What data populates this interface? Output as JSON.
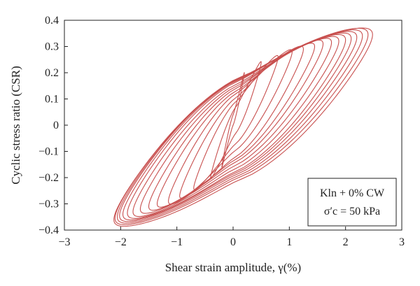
{
  "chart_data": {
    "type": "line",
    "title": "",
    "xlabel": "Shear strain amplitude, γ(%)",
    "ylabel": "Cyclic stress ratio (CSR)",
    "xlim": [
      -3,
      3
    ],
    "ylim": [
      -0.4,
      0.4
    ],
    "x_ticks": [
      "−3",
      "−2",
      "−1",
      "0",
      "1",
      "2",
      "3"
    ],
    "y_ticks": [
      "0.4",
      "0.3",
      "0.2",
      "0.1",
      "0",
      "−0.1",
      "−0.2",
      "−0.3",
      "−0.4"
    ],
    "grid": false,
    "legend_position": "bottom-right",
    "annotation_lines": [
      "Kln + 0% CW",
      "σ′c = 50 kPa"
    ],
    "series_color": "#c8504f",
    "series": [
      {
        "values_description_unit": "CSR vs shear strain (%)",
        "loops": [
          {
            "x_right": 0.2,
            "y_right": 0.2,
            "x_left": -0.2,
            "y_left": -0.16,
            "thickness": 0.02
          },
          {
            "x_right": 0.5,
            "y_right": 0.24,
            "x_left": -0.4,
            "y_left": -0.2,
            "thickness": 0.05
          },
          {
            "x_right": 0.8,
            "y_right": 0.26,
            "x_left": -0.7,
            "y_left": -0.24,
            "thickness": 0.08
          },
          {
            "x_right": 1.05,
            "y_right": 0.28,
            "x_left": -0.95,
            "y_left": -0.27,
            "thickness": 0.1
          },
          {
            "x_right": 1.25,
            "y_right": 0.29,
            "x_left": -1.15,
            "y_left": -0.29,
            "thickness": 0.12
          },
          {
            "x_right": 1.45,
            "y_right": 0.3,
            "x_left": -1.35,
            "y_left": -0.3,
            "thickness": 0.13
          },
          {
            "x_right": 1.6,
            "y_right": 0.31,
            "x_left": -1.5,
            "y_left": -0.31,
            "thickness": 0.14
          },
          {
            "x_right": 1.75,
            "y_right": 0.315,
            "x_left": -1.65,
            "y_left": -0.32,
            "thickness": 0.15
          },
          {
            "x_right": 1.88,
            "y_right": 0.32,
            "x_left": -1.78,
            "y_left": -0.33,
            "thickness": 0.16
          },
          {
            "x_right": 2.0,
            "y_right": 0.325,
            "x_left": -1.88,
            "y_left": -0.335,
            "thickness": 0.17
          },
          {
            "x_right": 2.1,
            "y_right": 0.33,
            "x_left": -1.96,
            "y_left": -0.34,
            "thickness": 0.175
          },
          {
            "x_right": 2.2,
            "y_right": 0.335,
            "x_left": -2.02,
            "y_left": -0.345,
            "thickness": 0.18
          },
          {
            "x_right": 2.3,
            "y_right": 0.34,
            "x_left": -2.06,
            "y_left": -0.35,
            "thickness": 0.185
          },
          {
            "x_right": 2.4,
            "y_right": 0.345,
            "x_left": -2.1,
            "y_left": -0.355,
            "thickness": 0.19
          },
          {
            "x_right": 2.48,
            "y_right": 0.345,
            "x_left": -2.12,
            "y_left": -0.36,
            "thickness": 0.195
          }
        ]
      }
    ]
  }
}
